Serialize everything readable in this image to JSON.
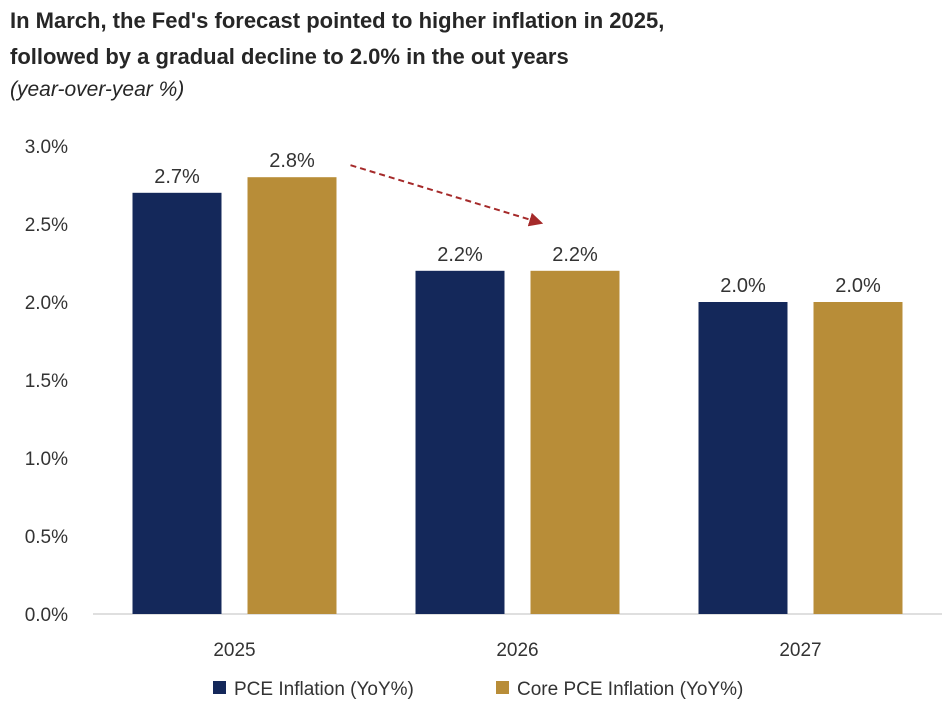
{
  "header": {
    "title_line1": "In March, the Fed's forecast pointed to higher inflation in 2025,",
    "title_line2": "followed by a gradual decline to 2.0% in the out years",
    "subtitle": "(year-over-year %)"
  },
  "chart_data": {
    "type": "bar",
    "title": "In March, the Fed's forecast pointed to higher inflation in 2025, followed by a gradual decline to 2.0% in the out years",
    "subtitle": "(year-over-year %)",
    "categories": [
      "2025",
      "2026",
      "2027"
    ],
    "series": [
      {
        "name": "PCE Inflation (YoY%)",
        "values": [
          2.7,
          2.2,
          2.0
        ],
        "labels": [
          "2.7%",
          "2.2%",
          "2.0%"
        ],
        "color": "#14285a"
      },
      {
        "name": "Core PCE Inflation (YoY%)",
        "values": [
          2.8,
          2.2,
          2.0
        ],
        "labels": [
          "2.8%",
          "2.2%",
          "2.0%"
        ],
        "color": "#b88d38"
      }
    ],
    "ylim": [
      0,
      3.0
    ],
    "yticks": [
      0,
      0.5,
      1.0,
      1.5,
      2.0,
      2.5,
      3.0
    ],
    "ytick_labels": [
      "0.0%",
      "0.5%",
      "1.0%",
      "1.5%",
      "2.0%",
      "2.5%",
      "3.0%"
    ],
    "xlabel": "",
    "ylabel": "",
    "grid": false,
    "legend_position": "bottom",
    "annotations": [
      {
        "type": "dashed-arrow",
        "from": "2025 Core PCE bar",
        "to": "2026 Core PCE bar",
        "color": "#a52a2a"
      }
    ]
  }
}
